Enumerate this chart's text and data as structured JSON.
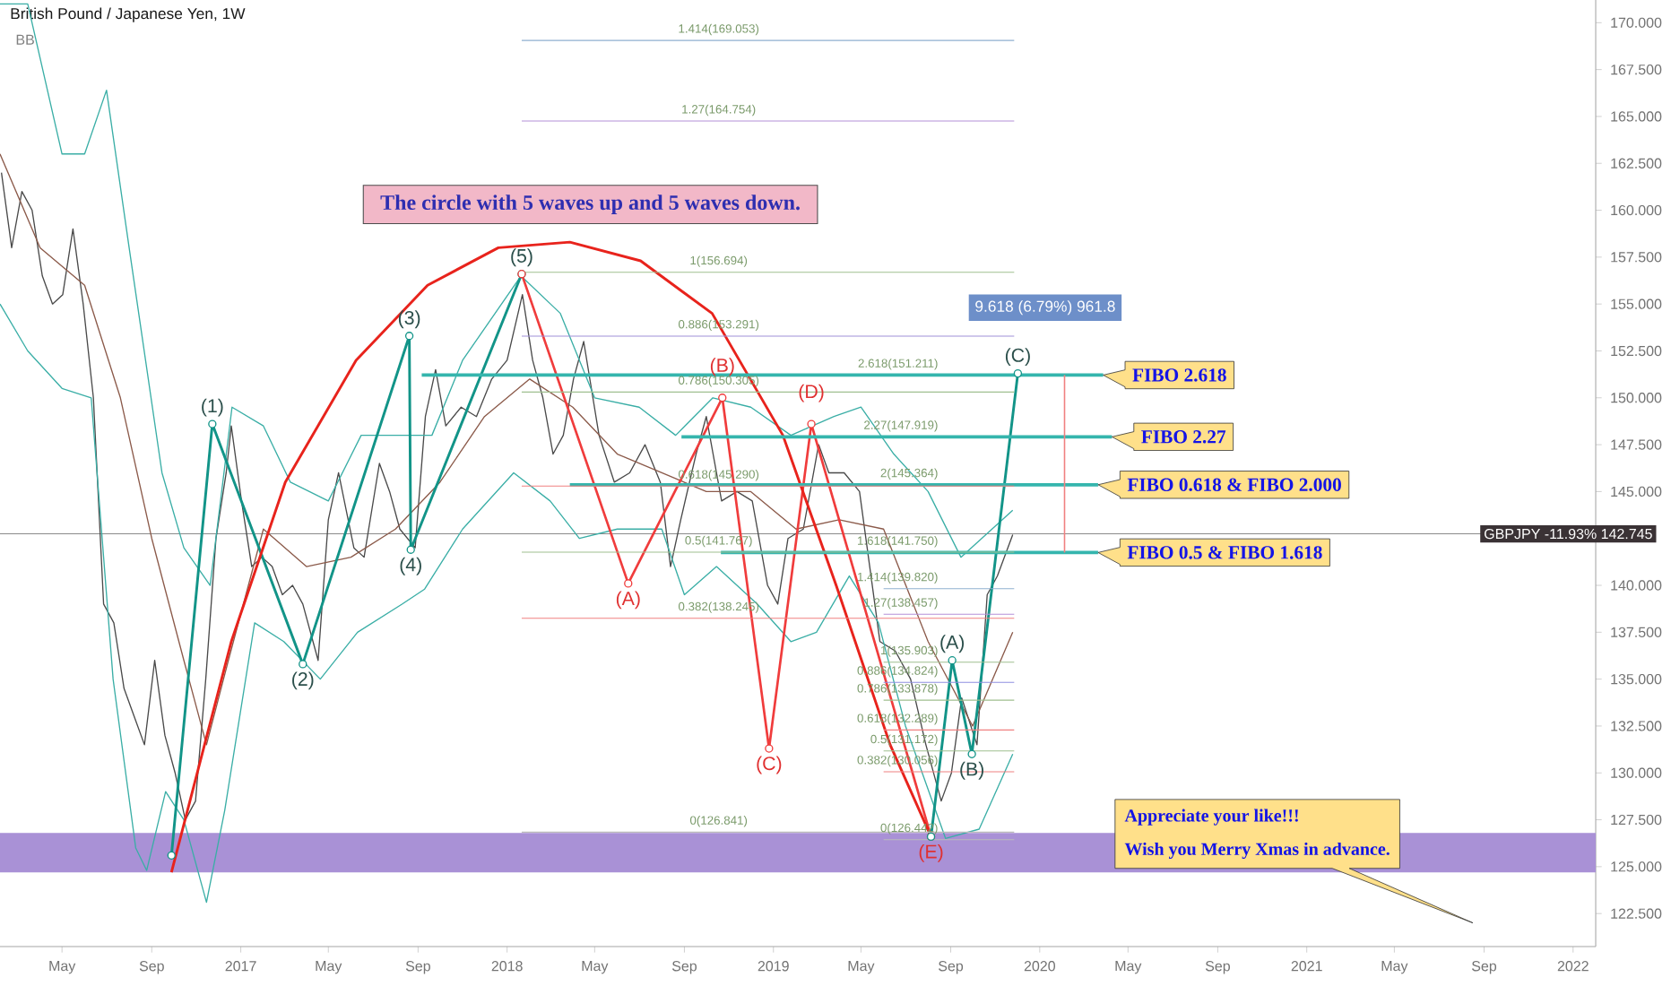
{
  "chart_data": {
    "type": "line",
    "title": "British Pound / Japanese Yen, 1W",
    "subtitle": "BB",
    "marker": "none",
    "xlim": [
      "2016-02-06",
      "2022-02-01"
    ],
    "ylim": [
      120.74,
      171.21
    ],
    "xticks": [
      {
        "value": "2016-05-01",
        "label": "May"
      },
      {
        "value": "2016-09-01",
        "label": "Sep"
      },
      {
        "value": "2017-01-01",
        "label": "2017"
      },
      {
        "value": "2017-05-01",
        "label": "May"
      },
      {
        "value": "2017-09-01",
        "label": "Sep"
      },
      {
        "value": "2018-01-01",
        "label": "2018"
      },
      {
        "value": "2018-05-01",
        "label": "May"
      },
      {
        "value": "2018-09-01",
        "label": "Sep"
      },
      {
        "value": "2019-01-01",
        "label": "2019"
      },
      {
        "value": "2019-05-01",
        "label": "May"
      },
      {
        "value": "2019-09-01",
        "label": "Sep"
      },
      {
        "value": "2020-01-01",
        "label": "2020"
      },
      {
        "value": "2020-05-01",
        "label": "May"
      },
      {
        "value": "2020-09-01",
        "label": "Sep"
      },
      {
        "value": "2021-01-01",
        "label": "2021"
      },
      {
        "value": "2021-05-01",
        "label": "May"
      },
      {
        "value": "2021-09-01",
        "label": "Sep"
      },
      {
        "value": "2022-01-01",
        "label": "2022"
      }
    ],
    "yticks": [
      {
        "value": 122.5,
        "label": "122.500"
      },
      {
        "value": 125,
        "label": "125.000"
      },
      {
        "value": 127.5,
        "label": "127.500"
      },
      {
        "value": 130,
        "label": "130.000"
      },
      {
        "value": 132.5,
        "label": "132.500"
      },
      {
        "value": 135,
        "label": "135.000"
      },
      {
        "value": 137.5,
        "label": "137.500"
      },
      {
        "value": 140,
        "label": "140.000"
      },
      {
        "value": 142.5,
        "label": null
      },
      {
        "value": 145,
        "label": "145.000"
      },
      {
        "value": 147.5,
        "label": "147.500"
      },
      {
        "value": 150,
        "label": "150.000"
      },
      {
        "value": 152.5,
        "label": "152.500"
      },
      {
        "value": 155,
        "label": "155.000"
      },
      {
        "value": 157.5,
        "label": "157.500"
      },
      {
        "value": 160,
        "label": "160.000"
      },
      {
        "value": 162.5,
        "label": "162.500"
      },
      {
        "value": 165,
        "label": "165.000"
      },
      {
        "value": 167.5,
        "label": "167.500"
      },
      {
        "value": 170,
        "label": "170.000"
      }
    ],
    "bands": [
      {
        "axis": "y",
        "from": 124.7,
        "to": 126.8,
        "color": "#a991d6"
      }
    ],
    "ref_lines": [
      {
        "axis": "y",
        "value": 142.745,
        "label": "GBPJPY -11.93% 142.745",
        "color": "#8a8a8a"
      }
    ],
    "series": [
      {
        "color": "#4a4a4a",
        "x": [
          "2016-02-08",
          "2016-02-22",
          "2016-03-07",
          "2016-03-21",
          "2016-04-04",
          "2016-04-18",
          "2016-05-02",
          "2016-05-16",
          "2016-05-30",
          "2016-06-13",
          "2016-06-27",
          "2016-07-11",
          "2016-07-25",
          "2016-08-08",
          "2016-08-22",
          "2016-09-05",
          "2016-09-19",
          "2016-10-03",
          "2016-10-17",
          "2016-10-31",
          "2016-11-14",
          "2016-11-28",
          "2016-12-12",
          "2016-12-19",
          "2017-01-02",
          "2017-01-16",
          "2017-01-30",
          "2017-02-13",
          "2017-02-27",
          "2017-03-13",
          "2017-03-27",
          "2017-04-17",
          "2017-05-01",
          "2017-05-15",
          "2017-06-05",
          "2017-06-19",
          "2017-07-10",
          "2017-07-24",
          "2017-08-07",
          "2017-08-28",
          "2017-09-11",
          "2017-09-25",
          "2017-10-09",
          "2017-10-30",
          "2017-11-20",
          "2017-12-11",
          "2018-01-01",
          "2018-01-22",
          "2018-02-05",
          "2018-02-19",
          "2018-03-05",
          "2018-03-19",
          "2018-04-02",
          "2018-04-16",
          "2018-05-07",
          "2018-05-28",
          "2018-06-18",
          "2018-07-09",
          "2018-07-30",
          "2018-08-13",
          "2018-08-27",
          "2018-09-17",
          "2018-10-01",
          "2018-10-22",
          "2018-11-12",
          "2018-12-03",
          "2018-12-24",
          "2019-01-07",
          "2019-01-21",
          "2019-02-11",
          "2019-03-04",
          "2019-03-18",
          "2019-04-08",
          "2019-04-29",
          "2019-05-13",
          "2019-05-27",
          "2019-06-17",
          "2019-07-08",
          "2019-07-29",
          "2019-08-19",
          "2019-09-02",
          "2019-09-16",
          "2019-10-07",
          "2019-10-21",
          "2019-11-04",
          "2019-11-25"
        ],
        "values": [
          162,
          158,
          161,
          160,
          156.5,
          155,
          155.5,
          159,
          155,
          150,
          139,
          138,
          134.5,
          133,
          131.5,
          136,
          132,
          130,
          127.5,
          128.5,
          135,
          142.5,
          146,
          148.5,
          144.5,
          141,
          141.5,
          141,
          139.5,
          140,
          139,
          136,
          143.5,
          146,
          142,
          141.5,
          146.5,
          145,
          143,
          142,
          149,
          151.5,
          148.5,
          149.5,
          149,
          151,
          152,
          155.5,
          152,
          150,
          147,
          148,
          151,
          153,
          148,
          145.5,
          146,
          147.5,
          145.5,
          141,
          143.5,
          147,
          149,
          144.5,
          145,
          144.5,
          140,
          139,
          142.5,
          143,
          147.5,
          146,
          146,
          145,
          141,
          137,
          136.5,
          135,
          131.5,
          128.5,
          130,
          134,
          131.5,
          139.5,
          140.5,
          142.7
        ]
      },
      {
        "color": "#3aaea6",
        "x": [
          "2016-02-06",
          "2016-03-15",
          "2016-05-01",
          "2016-06-01",
          "2016-07-01",
          "2016-08-01",
          "2016-09-15",
          "2016-10-15",
          "2016-11-20",
          "2016-12-20",
          "2017-02-01",
          "2017-03-10",
          "2017-05-01",
          "2017-06-15",
          "2017-08-10",
          "2017-09-20",
          "2017-11-01",
          "2018-01-20",
          "2018-03-15",
          "2018-05-01",
          "2018-07-01",
          "2018-08-20",
          "2018-10-10",
          "2018-12-01",
          "2019-01-25",
          "2019-03-25",
          "2019-05-01",
          "2019-06-15",
          "2019-08-01",
          "2019-09-15",
          "2019-11-25"
        ],
        "values": [
          171,
          171,
          163,
          163,
          166.4,
          158,
          146,
          142,
          140,
          149.5,
          148.5,
          145.5,
          144.5,
          148,
          148,
          148,
          152,
          156.5,
          154.5,
          150,
          149.5,
          148,
          150,
          149.5,
          148,
          149,
          149.5,
          147,
          145,
          141.5,
          144
        ]
      },
      {
        "color": "#3aaea6",
        "x": [
          "2016-02-06",
          "2016-03-15",
          "2016-05-01",
          "2016-06-10",
          "2016-07-10",
          "2016-08-10",
          "2016-08-25",
          "2016-09-20",
          "2016-10-15",
          "2016-11-15",
          "2016-12-10",
          "2017-01-20",
          "2017-03-01",
          "2017-04-20",
          "2017-06-10",
          "2017-08-10",
          "2017-09-10",
          "2017-11-01",
          "2018-01-10",
          "2018-03-01",
          "2018-04-10",
          "2018-06-01",
          "2018-08-01",
          "2018-09-01",
          "2018-10-15",
          "2018-12-10",
          "2019-01-25",
          "2019-03-01",
          "2019-04-15",
          "2019-05-25",
          "2019-07-01",
          "2019-08-25",
          "2019-10-10",
          "2019-11-25"
        ],
        "values": [
          155,
          152.5,
          150.5,
          150,
          135,
          126,
          124.8,
          129,
          127.5,
          123.1,
          128,
          138,
          137,
          135,
          137.5,
          139,
          139.8,
          143,
          146,
          144.5,
          142.5,
          143,
          143,
          139.5,
          141,
          139,
          137,
          137.5,
          140.5,
          138,
          132.5,
          126.5,
          127,
          131
        ]
      },
      {
        "color": "#8b5a4a",
        "x": [
          "2016-02-06",
          "2016-04-01",
          "2016-06-01",
          "2016-07-20",
          "2016-09-01",
          "2016-10-15",
          "2016-11-15",
          "2016-12-15",
          "2017-02-01",
          "2017-04-01",
          "2017-06-01",
          "2017-08-01",
          "2017-10-01",
          "2017-12-01",
          "2018-02-01",
          "2018-04-01",
          "2018-06-01",
          "2018-08-01",
          "2018-10-01",
          "2018-12-01",
          "2019-02-01",
          "2019-04-01",
          "2019-06-01",
          "2019-08-01",
          "2019-10-01",
          "2019-11-25"
        ],
        "values": [
          163,
          158,
          156,
          150,
          142.5,
          136,
          131.5,
          136,
          143,
          141,
          141.5,
          143,
          145.5,
          149,
          151,
          149.5,
          147,
          146,
          145,
          145,
          143,
          143.5,
          143,
          137,
          132.5,
          137.5
        ]
      },
      {
        "color": "#129488",
        "marker": "circle",
        "x": [
          "2016-09-28",
          "2016-11-23",
          "2017-03-27",
          "2017-08-20",
          "2017-08-22",
          "2018-01-21"
        ],
        "values": [
          125.6,
          148.6,
          135.8,
          153.3,
          141.9,
          156.6
        ]
      },
      {
        "color": "#f03c3c",
        "marker": "circle",
        "x": [
          "2018-01-21",
          "2018-06-16",
          "2018-10-23",
          "2018-12-26",
          "2019-02-22",
          "2019-08-05"
        ],
        "values": [
          156.6,
          140.1,
          150.0,
          131.3,
          148.6,
          126.6
        ]
      },
      {
        "color": "#129488",
        "marker": "circle",
        "x": [
          "2019-08-05",
          "2019-09-03",
          "2019-09-30",
          "2019-12-02"
        ],
        "values": [
          126.6,
          136.0,
          131.0,
          151.3
        ]
      },
      {
        "color": "#e8231c",
        "x": [
          "2016-09-28",
          "2016-12-19",
          "2017-03-03",
          "2017-06-08",
          "2017-09-14",
          "2017-12-20",
          "2018-03-28",
          "2018-07-03",
          "2018-10-09",
          "2019-01-14",
          "2019-03-28",
          "2019-06-10",
          "2019-08-05"
        ],
        "values": [
          124.7,
          137,
          145.5,
          152,
          156,
          158,
          158.3,
          157.3,
          154.5,
          148,
          140,
          131.5,
          126.6
        ]
      },
      {
        "color": "#35b5ad",
        "x": [
          "2017-09-06",
          "2020-03-28"
        ],
        "values": [
          151.211,
          151.211
        ]
      },
      {
        "color": "#35b5ad",
        "x": [
          "2018-08-28",
          "2020-04-09"
        ],
        "values": [
          147.919,
          147.919
        ]
      },
      {
        "color": "#35b5ad",
        "x": [
          "2018-03-28",
          "2020-03-21"
        ],
        "values": [
          145.364,
          145.364
        ]
      },
      {
        "color": "#35b5ad",
        "x": [
          "2018-10-21",
          "2020-03-21"
        ],
        "values": [
          141.75,
          141.75
        ]
      },
      {
        "color": "#f08080",
        "x": [
          "2020-02-04",
          "2020-02-04"
        ],
        "values": [
          141.75,
          151.211
        ]
      },
      {
        "color": "#8fb0d0",
        "x": [
          "2018-01-21",
          "2019-11-27"
        ],
        "values": [
          169.053,
          169.053
        ]
      },
      {
        "color": "#b48fd8",
        "x": [
          "2018-01-21",
          "2019-11-27"
        ],
        "values": [
          164.754,
          164.754
        ]
      },
      {
        "color": "#9fbf8f",
        "x": [
          "2018-01-21",
          "2019-11-27"
        ],
        "values": [
          156.694,
          156.694
        ]
      },
      {
        "color": "#9f8fd8",
        "x": [
          "2018-01-21",
          "2019-11-27"
        ],
        "values": [
          153.291,
          153.291
        ]
      },
      {
        "color": "#9fbf8f",
        "x": [
          "2018-01-21",
          "2019-11-27"
        ],
        "values": [
          150.305,
          150.305
        ]
      },
      {
        "color": "#f08080",
        "x": [
          "2018-01-21",
          "2019-11-27"
        ],
        "values": [
          145.29,
          145.29
        ]
      },
      {
        "color": "#9fbf8f",
        "x": [
          "2018-01-21",
          "2019-11-27"
        ],
        "values": [
          141.767,
          141.767
        ]
      },
      {
        "color": "#f08080",
        "x": [
          "2018-01-21",
          "2019-11-27"
        ],
        "values": [
          138.245,
          138.245
        ]
      },
      {
        "color": "#bbbbbb",
        "x": [
          "2018-01-21",
          "2019-11-27"
        ],
        "values": [
          126.841,
          126.841
        ]
      },
      {
        "color": "#8fb0d0",
        "x": [
          "2019-06-01",
          "2019-11-27"
        ],
        "values": [
          139.82,
          139.82
        ]
      },
      {
        "color": "#b48fd8",
        "x": [
          "2019-06-01",
          "2019-11-27"
        ],
        "values": [
          138.457,
          138.457
        ]
      },
      {
        "color": "#9fbf8f",
        "x": [
          "2019-06-01",
          "2019-11-27"
        ],
        "values": [
          135.903,
          135.903
        ]
      },
      {
        "color": "#8f8fe0",
        "x": [
          "2019-06-01",
          "2019-11-27"
        ],
        "values": [
          134.824,
          134.824
        ]
      },
      {
        "color": "#9fbf8f",
        "x": [
          "2019-06-01",
          "2019-11-27"
        ],
        "values": [
          133.878,
          133.878
        ]
      },
      {
        "color": "#f08080",
        "x": [
          "2019-06-01",
          "2019-11-27"
        ],
        "values": [
          132.289,
          132.289
        ]
      },
      {
        "color": "#9fbf8f",
        "x": [
          "2019-06-01",
          "2019-11-27"
        ],
        "values": [
          131.172,
          131.172
        ]
      },
      {
        "color": "#f08080",
        "x": [
          "2019-06-01",
          "2019-11-27"
        ],
        "values": [
          130.056,
          130.056
        ]
      },
      {
        "color": "#bbbbbb",
        "x": [
          "2019-06-01",
          "2019-11-27"
        ],
        "values": [
          126.442,
          126.442
        ]
      }
    ],
    "annotations": [
      "The circle with 5 waves up and 5 waves down.",
      "Appreciate your like!!!",
      "Wish you Merry Xmas in advance.",
      "9.618 (6.79%) 961.8",
      {
        "text": "FIBO 2.618",
        "x": "2020-03-28",
        "y": 151.211
      },
      {
        "text": "FIBO 2.27",
        "x": "2020-04-09",
        "y": 147.919
      },
      {
        "text": "FIBO 0.618 & FIBO 2.000",
        "x": "2020-03-21",
        "y": 145.364
      },
      {
        "text": "FIBO 0.5 & FIBO 1.618",
        "x": "2020-03-21",
        "y": 141.75
      },
      {
        "text": "(1)",
        "x": "2016-11-23",
        "y": 148.6
      },
      {
        "text": "(2)",
        "x": "2017-03-27",
        "y": 135.8
      },
      {
        "text": "(3)",
        "x": "2017-08-20",
        "y": 153.3
      },
      {
        "text": "(4)",
        "x": "2017-08-22",
        "y": 141.9
      },
      {
        "text": "(5)",
        "x": "2018-01-21",
        "y": 156.6
      },
      {
        "text": "(A)",
        "x": "2018-06-16",
        "y": 140.1
      },
      {
        "text": "(B)",
        "x": "2018-10-23",
        "y": 150.0
      },
      {
        "text": "(C)",
        "x": "2018-12-26",
        "y": 131.3
      },
      {
        "text": "(D)",
        "x": "2019-02-22",
        "y": 148.6
      },
      {
        "text": "(E)",
        "x": "2019-08-05",
        "y": 126.6
      },
      {
        "text": "(A)",
        "x": "2019-09-03",
        "y": 136.0
      },
      {
        "text": "(B)",
        "x": "2019-09-30",
        "y": 131.0
      },
      {
        "text": "(C)",
        "x": "2019-12-02",
        "y": 151.3
      },
      {
        "text": "1.414(169.053)",
        "x": "2018-10-18",
        "y": 169.053
      },
      {
        "text": "1.27(164.754)",
        "x": "2018-10-18",
        "y": 164.754
      },
      {
        "text": "1(156.694)",
        "x": "2018-10-18",
        "y": 156.694
      },
      {
        "text": "0.886(153.291)",
        "x": "2018-10-18",
        "y": 153.291
      },
      {
        "text": "0.786(150.305)",
        "x": "2018-10-18",
        "y": 150.305
      },
      {
        "text": "0.618(145.290)",
        "x": "2018-10-18",
        "y": 145.29
      },
      {
        "text": "0.5(141.767)",
        "x": "2018-10-18",
        "y": 141.767
      },
      {
        "text": "0.382(138.245)",
        "x": "2018-10-18",
        "y": 138.245
      },
      {
        "text": "0(126.841)",
        "x": "2018-10-18",
        "y": 126.841
      },
      {
        "text": "2.618(151.211)",
        "x": "2019-08-17",
        "y": 151.211
      },
      {
        "text": "2.27(147.919)",
        "x": "2019-08-17",
        "y": 147.919
      },
      {
        "text": "2(145.364)",
        "x": "2019-08-17",
        "y": 145.364
      },
      {
        "text": "1.618(141.750)",
        "x": "2019-08-17",
        "y": 141.75
      },
      {
        "text": "1.414(139.820)",
        "x": "2019-08-17",
        "y": 139.82
      },
      {
        "text": "1.27(138.457)",
        "x": "2019-08-17",
        "y": 138.457
      },
      {
        "text": "1(135.903)",
        "x": "2019-08-17",
        "y": 135.903
      },
      {
        "text": "0.886(134.824)",
        "x": "2019-08-17",
        "y": 134.824
      },
      {
        "text": "0.786(133.878)",
        "x": "2019-08-17",
        "y": 133.878
      },
      {
        "text": "0.618(132.289)",
        "x": "2019-08-17",
        "y": 132.289
      },
      {
        "text": "0.5(131.172)",
        "x": "2019-08-17",
        "y": 131.172
      },
      {
        "text": "0.382(130.056)",
        "x": "2019-08-17",
        "y": 130.056
      },
      {
        "text": "0(126.442)",
        "x": "2019-08-17",
        "y": 126.442
      }
    ]
  }
}
